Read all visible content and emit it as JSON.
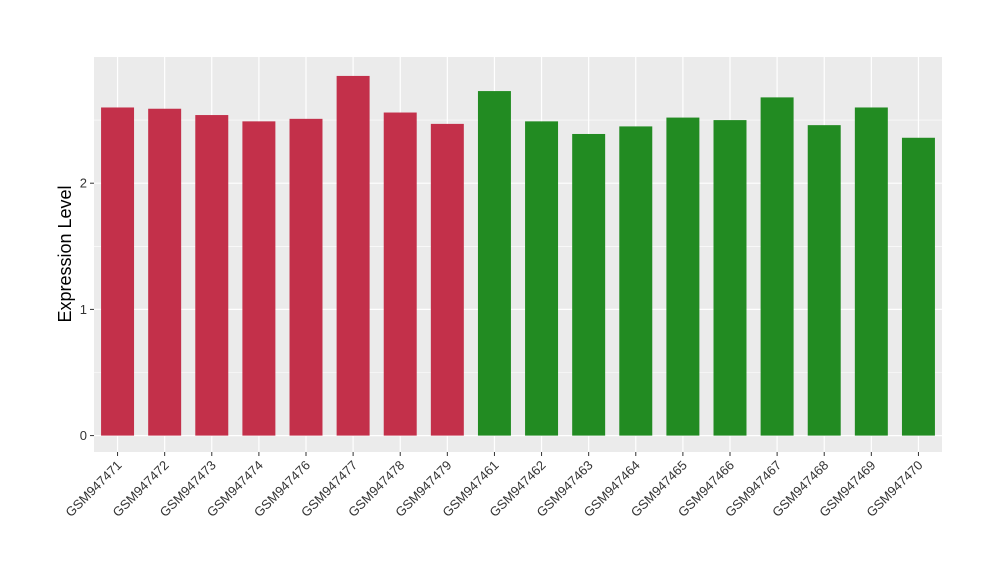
{
  "chart_data": {
    "type": "bar",
    "title": "",
    "xlabel": "",
    "ylabel": "Expression Level",
    "ylim": [
      -0.13,
      3.0
    ],
    "yticks": [
      0,
      1,
      2
    ],
    "grid": true,
    "legend": "none",
    "colors": {
      "group_a": "#C3304A",
      "group_b": "#228B22",
      "panel": "#EBEBEB",
      "grid": "#FFFFFF"
    },
    "categories": [
      "GSM947471",
      "GSM947472",
      "GSM947473",
      "GSM947474",
      "GSM947476",
      "GSM947477",
      "GSM947478",
      "GSM947479",
      "GSM947461",
      "GSM947462",
      "GSM947463",
      "GSM947464",
      "GSM947465",
      "GSM947466",
      "GSM947467",
      "GSM947468",
      "GSM947469",
      "GSM947470"
    ],
    "values": [
      2.6,
      2.59,
      2.54,
      2.49,
      2.51,
      2.85,
      2.56,
      2.47,
      2.73,
      2.49,
      2.39,
      2.45,
      2.52,
      2.5,
      2.68,
      2.46,
      2.6,
      2.36
    ],
    "bar_groups": [
      "a",
      "a",
      "a",
      "a",
      "a",
      "a",
      "a",
      "a",
      "b",
      "b",
      "b",
      "b",
      "b",
      "b",
      "b",
      "b",
      "b",
      "b"
    ]
  }
}
